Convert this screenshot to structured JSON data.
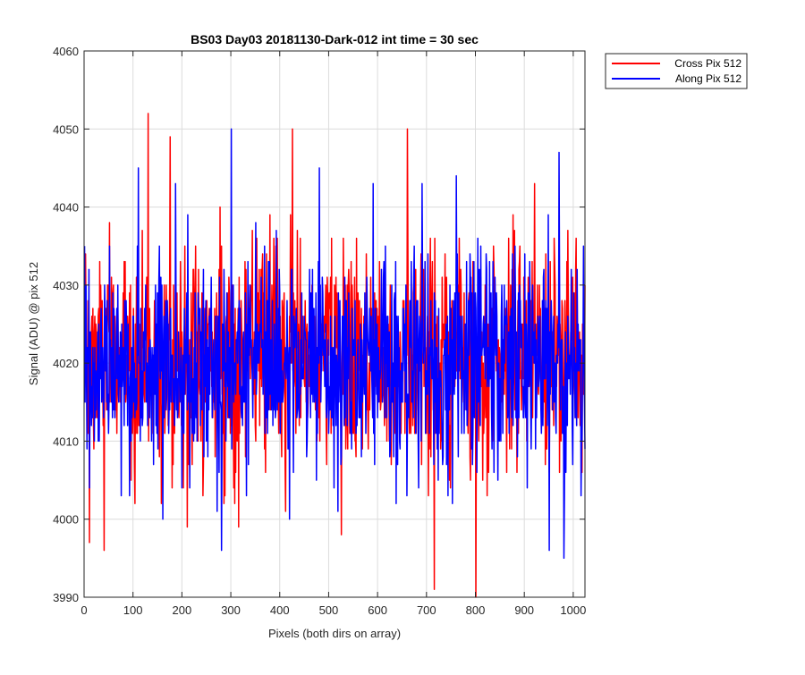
{
  "chart_data": {
    "type": "line",
    "title": "BS03 Day03 20181130-Dark-012 int time = 30 sec",
    "xlabel": "Pixels (both dirs on array)",
    "ylabel": "Signal (ADU) @ pix 512",
    "xlim": [
      0,
      1024
    ],
    "ylim": [
      3990,
      4060
    ],
    "xticks": [
      0,
      100,
      200,
      300,
      400,
      500,
      600,
      700,
      800,
      900,
      1000
    ],
    "yticks": [
      3990,
      4000,
      4010,
      4020,
      4030,
      4040,
      4050,
      4060
    ],
    "xtick_labels": [
      "0",
      "100",
      "200",
      "300",
      "400",
      "500",
      "600",
      "700",
      "800",
      "900",
      "1000"
    ],
    "ytick_labels": [
      "3990",
      "4000",
      "4010",
      "4020",
      "4030",
      "4040",
      "4050",
      "4060"
    ],
    "grid": true,
    "legend_position": "outside-top-right",
    "series": [
      {
        "name": "Cross Pix 512",
        "color": "#ff0000",
        "num_points": 1024,
        "mean": 4021,
        "std": 7,
        "min": 3990,
        "max": 4052,
        "notable_points": [
          {
            "x": 10,
            "y": 3997
          },
          {
            "x": 40,
            "y": 3996
          },
          {
            "x": 130,
            "y": 4052
          },
          {
            "x": 175,
            "y": 4049
          },
          {
            "x": 210,
            "y": 3999
          },
          {
            "x": 425,
            "y": 4050
          },
          {
            "x": 525,
            "y": 3998
          },
          {
            "x": 660,
            "y": 4050
          },
          {
            "x": 715,
            "y": 3991
          },
          {
            "x": 800,
            "y": 3990
          },
          {
            "x": 920,
            "y": 4043
          },
          {
            "x": 1005,
            "y": 4036
          }
        ]
      },
      {
        "name": "Along Pix 512",
        "color": "#0000ff",
        "num_points": 1024,
        "mean": 4020,
        "std": 7,
        "min": 3995,
        "max": 4050,
        "notable_points": [
          {
            "x": 110,
            "y": 4045
          },
          {
            "x": 160,
            "y": 4000
          },
          {
            "x": 280,
            "y": 3996
          },
          {
            "x": 300,
            "y": 4050
          },
          {
            "x": 350,
            "y": 4038
          },
          {
            "x": 480,
            "y": 4045
          },
          {
            "x": 590,
            "y": 4043
          },
          {
            "x": 690,
            "y": 4043
          },
          {
            "x": 760,
            "y": 4044
          },
          {
            "x": 950,
            "y": 3996
          },
          {
            "x": 970,
            "y": 4047
          },
          {
            "x": 980,
            "y": 3995
          },
          {
            "x": 1015,
            "y": 4003
          }
        ]
      }
    ]
  }
}
